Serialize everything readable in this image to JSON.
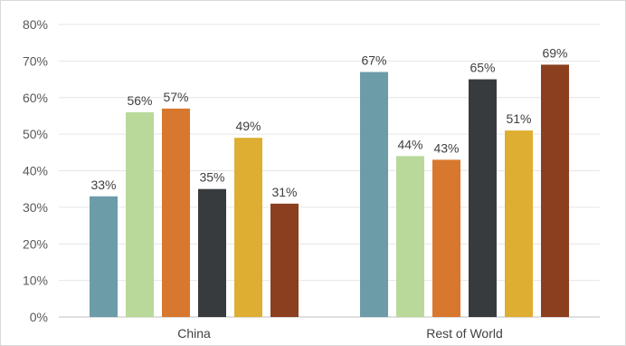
{
  "chart_data": {
    "type": "bar",
    "categories": [
      "China",
      "Rest of World"
    ],
    "series": [
      {
        "values": [
          33,
          67
        ],
        "color": "#6b9ca8"
      },
      {
        "values": [
          56,
          44
        ],
        "color": "#b8d99a"
      },
      {
        "values": [
          57,
          43
        ],
        "color": "#d8772e"
      },
      {
        "values": [
          35,
          65
        ],
        "color": "#373b3e"
      },
      {
        "values": [
          49,
          51
        ],
        "color": "#ddae31"
      },
      {
        "values": [
          31,
          69
        ],
        "color": "#8b3f1e"
      }
    ],
    "data_labels": [
      [
        "33%",
        "67%"
      ],
      [
        "56%",
        "44%"
      ],
      [
        "57%",
        "43%"
      ],
      [
        "35%",
        "65%"
      ],
      [
        "49%",
        "51%"
      ],
      [
        "31%",
        "69%"
      ]
    ],
    "y_ticks": [
      "0%",
      "10%",
      "20%",
      "30%",
      "40%",
      "50%",
      "60%",
      "70%",
      "80%"
    ],
    "ylim": [
      0,
      80
    ],
    "y_unit": "%",
    "grid": true,
    "legend": "none"
  }
}
